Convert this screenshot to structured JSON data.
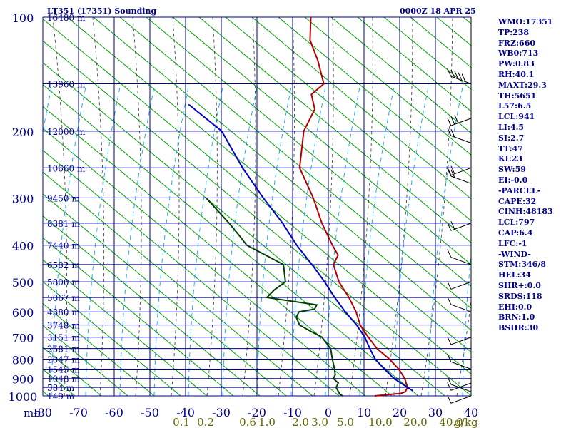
{
  "header": {
    "title": "LT351 (17351) Sounding",
    "date": "0000Z 18 APR 25"
  },
  "indices": [
    "WMO:17351",
    "TP:238",
    "FRZ:660",
    "WB0:713",
    "PW:0.83",
    "RH:40.1",
    "MAXT:29.3",
    "TH:5651",
    "L57:6.5",
    "LCL:941",
    "LI:4.5",
    "SI:2.7",
    "TT:47",
    "KI:23",
    "SW:59",
    "EI:-0.0",
    "-PARCEL-",
    "CAPE:32",
    "CINH:48183",
    "LCL:797",
    "CAP:6.4",
    "LFC:-1",
    "-WIND-",
    "STM:346/8",
    "HEL:34",
    "SHR+:0.0",
    "SRDS:118",
    "EHI:0.0",
    "BRN:1.0",
    "BSHR:30"
  ],
  "chart_data": {
    "type": "line",
    "title": "LT351 (17351) Sounding",
    "skew_diagram": true,
    "x_axis": {
      "unit_label": "mb",
      "ticks": [
        -80,
        -70,
        -60,
        -50,
        -40,
        -30,
        -20,
        -10,
        0,
        10,
        20,
        30,
        40
      ],
      "range": [
        -80,
        40
      ]
    },
    "y_axis": {
      "scale": "log",
      "range": [
        1000,
        100
      ],
      "ticks": [
        100,
        200,
        300,
        400,
        500,
        600,
        700,
        800,
        900,
        1000
      ]
    },
    "mixing_ratio_labels": [
      "0.1",
      "0.2",
      "0.6",
      "1.0",
      "2.0",
      "3.0",
      "5.0",
      "10.0",
      "20.0",
      "40.0",
      "g/kg"
    ],
    "height_labels": [
      {
        "p": 100,
        "text": "16480 m"
      },
      {
        "p": 150,
        "text": "13960 m"
      },
      {
        "p": 200,
        "text": "12000 m"
      },
      {
        "p": 250,
        "text": "10660 m"
      },
      {
        "p": 300,
        "text": "9450 m"
      },
      {
        "p": 350,
        "text": "8381 m"
      },
      {
        "p": 400,
        "text": "7440 m"
      },
      {
        "p": 450,
        "text": "6582 m"
      },
      {
        "p": 500,
        "text": "5800 m"
      },
      {
        "p": 550,
        "text": "5067 m"
      },
      {
        "p": 600,
        "text": "4380 m"
      },
      {
        "p": 650,
        "text": "3748 m"
      },
      {
        "p": 700,
        "text": "3151 m"
      },
      {
        "p": 750,
        "text": "2581 m"
      },
      {
        "p": 800,
        "text": "2047 m"
      },
      {
        "p": 850,
        "text": "1545 m"
      },
      {
        "p": 900,
        "text": "1048 m"
      },
      {
        "p": 950,
        "text": "584 m"
      },
      {
        "p": 1000,
        "text": "149 m"
      }
    ],
    "colors": {
      "grid": "#00008b",
      "skew_lines": "#00a000",
      "dry_adiabat": "#444444",
      "moist_adiabat": "#00aaff",
      "temperature": "#b00000",
      "dewpoint": "#004000",
      "parcel": "#0000c0",
      "text": "#00008b",
      "mixing_ratio_text": "#666600"
    },
    "series": [
      {
        "kind": "temperature",
        "points": [
          [
            1000,
            13
          ],
          [
            985,
            20
          ],
          [
            975,
            21
          ],
          [
            950,
            21
          ],
          [
            925,
            20
          ],
          [
            900,
            19
          ],
          [
            850,
            16
          ],
          [
            800,
            12
          ],
          [
            750,
            7
          ],
          [
            700,
            3
          ],
          [
            675,
            1
          ],
          [
            650,
            -1
          ],
          [
            600,
            -4
          ],
          [
            550,
            -8
          ],
          [
            500,
            -13
          ],
          [
            450,
            -17
          ],
          [
            425,
            -17
          ],
          [
            400,
            -20
          ],
          [
            350,
            -26
          ],
          [
            300,
            -32
          ],
          [
            250,
            -40
          ],
          [
            200,
            -44
          ],
          [
            175,
            -44
          ],
          [
            160,
            -47
          ],
          [
            150,
            -45
          ],
          [
            130,
            -50
          ],
          [
            115,
            -55
          ],
          [
            100,
            -58
          ]
        ]
      },
      {
        "kind": "dewpoint",
        "points": [
          [
            1000,
            4
          ],
          [
            990,
            3
          ],
          [
            950,
            1
          ],
          [
            925,
            1
          ],
          [
            900,
            -1
          ],
          [
            880,
            -1
          ],
          [
            850,
            -2
          ],
          [
            800,
            -4
          ],
          [
            750,
            -6
          ],
          [
            700,
            -10
          ],
          [
            675,
            -14
          ],
          [
            650,
            -18
          ],
          [
            620,
            -20
          ],
          [
            600,
            -20
          ],
          [
            590,
            -16
          ],
          [
            575,
            -16
          ],
          [
            550,
            -31
          ],
          [
            525,
            -30
          ],
          [
            500,
            -28
          ],
          [
            450,
            -31
          ],
          [
            400,
            -44
          ],
          [
            380,
            -47
          ],
          [
            350,
            -52
          ],
          [
            300,
            -62
          ]
        ]
      },
      {
        "kind": "parcel",
        "points": [
          [
            970,
            23
          ],
          [
            950,
            21
          ],
          [
            900,
            16
          ],
          [
            850,
            12
          ],
          [
            800,
            8
          ],
          [
            750,
            5
          ],
          [
            700,
            2
          ],
          [
            650,
            -2
          ],
          [
            600,
            -7
          ],
          [
            550,
            -12
          ],
          [
            500,
            -17
          ],
          [
            450,
            -23
          ],
          [
            400,
            -30
          ],
          [
            350,
            -37
          ],
          [
            300,
            -46
          ],
          [
            250,
            -56
          ],
          [
            200,
            -67
          ],
          [
            170,
            -80
          ]
        ]
      }
    ],
    "wind_barbs": [
      {
        "p": 150,
        "speed": "50"
      },
      {
        "p": 185,
        "speed": "25"
      },
      {
        "p": 215,
        "speed": "15"
      },
      {
        "p": 250,
        "speed": "20"
      },
      {
        "p": 275,
        "speed": "20"
      },
      {
        "p": 350,
        "speed": "15"
      },
      {
        "p": 450,
        "speed": "10"
      },
      {
        "p": 500,
        "speed": "5"
      },
      {
        "p": 600,
        "speed": "10"
      },
      {
        "p": 700,
        "speed": "10"
      },
      {
        "p": 850,
        "speed": "5"
      },
      {
        "p": 925,
        "speed": "10"
      },
      {
        "p": 975,
        "speed": "10"
      },
      {
        "p": 1000,
        "speed": "5"
      }
    ]
  }
}
